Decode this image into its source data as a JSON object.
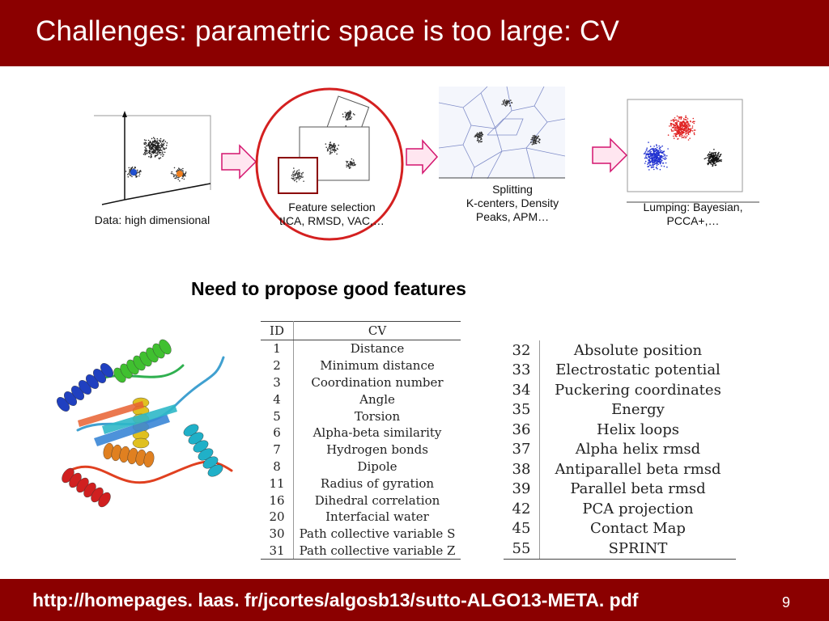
{
  "slide": {
    "title": "Challenges: parametric space is too large: CV",
    "subheading": "Need to propose good features",
    "footer_url": "http://homepages. laas. fr/jcortes/algosb13/sutto-ALGO13-META. pdf",
    "page_number": "9"
  },
  "pipeline": {
    "captions": [
      {
        "line1": "Data: high dimensional",
        "line2": ""
      },
      {
        "line1": "Feature selection",
        "line2": "tICA, RMSD, VAC,…"
      },
      {
        "line1": "Splitting",
        "line2": "K-centers, Density",
        "line3": "Peaks, APM…"
      },
      {
        "line1": "Lumping: Bayesian,",
        "line2": "PCCA+,…"
      }
    ]
  },
  "cv_table_left": {
    "headers": [
      "ID",
      "CV"
    ],
    "rows": [
      {
        "id": "1",
        "name": "Distance"
      },
      {
        "id": "2",
        "name": "Minimum distance"
      },
      {
        "id": "3",
        "name": "Coordination number"
      },
      {
        "id": "4",
        "name": "Angle"
      },
      {
        "id": "5",
        "name": "Torsion"
      },
      {
        "id": "6",
        "name": "Alpha-beta similarity"
      },
      {
        "id": "7",
        "name": "Hydrogen bonds"
      },
      {
        "id": "8",
        "name": "Dipole"
      },
      {
        "id": "11",
        "name": "Radius of gyration"
      },
      {
        "id": "16",
        "name": "Dihedral correlation"
      },
      {
        "id": "20",
        "name": "Interfacial water"
      },
      {
        "id": "30",
        "name": "Path collective variable S"
      },
      {
        "id": "31",
        "name": "Path collective variable Z"
      }
    ]
  },
  "cv_table_right": {
    "rows": [
      {
        "id": "32",
        "name": "Absolute position"
      },
      {
        "id": "33",
        "name": "Electrostatic potential"
      },
      {
        "id": "34",
        "name": "Puckering coordinates"
      },
      {
        "id": "35",
        "name": "Energy"
      },
      {
        "id": "36",
        "name": "Helix loops"
      },
      {
        "id": "37",
        "name": "Alpha helix rmsd"
      },
      {
        "id": "38",
        "name": "Antiparallel beta rmsd"
      },
      {
        "id": "39",
        "name": "Parallel beta rmsd"
      },
      {
        "id": "42",
        "name": "PCA projection"
      },
      {
        "id": "45",
        "name": "Contact Map"
      },
      {
        "id": "55",
        "name": "SPRINT"
      }
    ]
  },
  "colors": {
    "title_bar": "#8b0000",
    "highlight_circle": "#d42020",
    "arrow_fill": "#ffe6f0",
    "arrow_stroke": "#d4146e"
  }
}
